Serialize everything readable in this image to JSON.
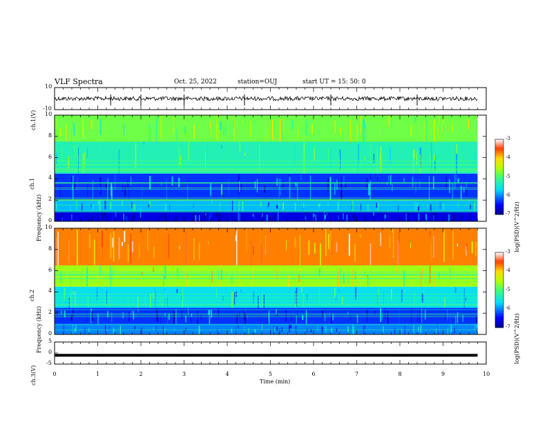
{
  "header": {
    "title": "VLF Spectra",
    "date": "Oct. 25, 2022",
    "station": "station=OUJ",
    "start": "start  UT =   15: 50: 0"
  },
  "chart_data": [
    {
      "type": "line",
      "name": "ch.1 waveform",
      "ylabel": "ch.1(V)",
      "ylim": [
        -10,
        10
      ],
      "yticks": [
        "10",
        "-10"
      ],
      "baseline_value": 0,
      "spike_times_min": [
        1.3,
        2.0,
        3.0,
        4.4,
        6.4,
        8.4
      ]
    },
    {
      "type": "heatmap",
      "name": "ch.1 spectrogram",
      "ylabel_line1": "ch.1",
      "ylabel_line2": "Frequency (kHz)",
      "ylim": [
        0,
        10
      ],
      "yticks": [
        "0",
        "2",
        "4",
        "6",
        "8",
        "10"
      ],
      "colorbar": {
        "label": "log(PSD)(V^2/Hz)",
        "range": [
          -7,
          -3
        ],
        "ticks": [
          "-3",
          "-4",
          "-5",
          "-6",
          "-7"
        ]
      },
      "band_levels": [
        {
          "freq_khz": [
            0,
            1.0
          ],
          "level": -6.6
        },
        {
          "freq_khz": [
            1.0,
            2.0
          ],
          "level": -5.8
        },
        {
          "freq_khz": [
            2.0,
            4.5
          ],
          "level": -6.3
        },
        {
          "freq_khz": [
            4.5,
            7.5
          ],
          "level": -5.3
        },
        {
          "freq_khz": [
            7.5,
            10
          ],
          "level": -4.8
        }
      ]
    },
    {
      "type": "heatmap",
      "name": "ch.2 spectrogram",
      "ylabel_line1": "ch.2",
      "ylabel_line2": "Frequency (kHz)",
      "ylim": [
        0,
        10
      ],
      "yticks": [
        "0",
        "2",
        "4",
        "6",
        "8",
        "10"
      ],
      "colorbar": {
        "label": "log(PSD)(V^2/Hz)",
        "range": [
          -7,
          -3
        ],
        "ticks": [
          "-3",
          "-4",
          "-5",
          "-6",
          "-7"
        ]
      },
      "band_levels": [
        {
          "freq_khz": [
            0,
            1.0
          ],
          "level": -6.0
        },
        {
          "freq_khz": [
            1.0,
            2.5
          ],
          "level": -6.3
        },
        {
          "freq_khz": [
            2.5,
            4.5
          ],
          "level": -5.6
        },
        {
          "freq_khz": [
            4.5,
            6.5
          ],
          "level": -4.6
        },
        {
          "freq_khz": [
            6.5,
            10
          ],
          "level": -3.7
        }
      ]
    },
    {
      "type": "line",
      "name": "ch.3 waveform",
      "ylabel": "ch.3(V)",
      "ylim": [
        -5,
        5
      ],
      "yticks": [
        "5",
        "0",
        "-5"
      ],
      "constant_value": -1.0
    }
  ],
  "xaxis": {
    "label": "Time (min)",
    "range": [
      0,
      10
    ],
    "ticks": [
      "0",
      "1",
      "2",
      "3",
      "4",
      "5",
      "6",
      "7",
      "8",
      "9",
      "10"
    ],
    "data_end_min": 9.8
  }
}
